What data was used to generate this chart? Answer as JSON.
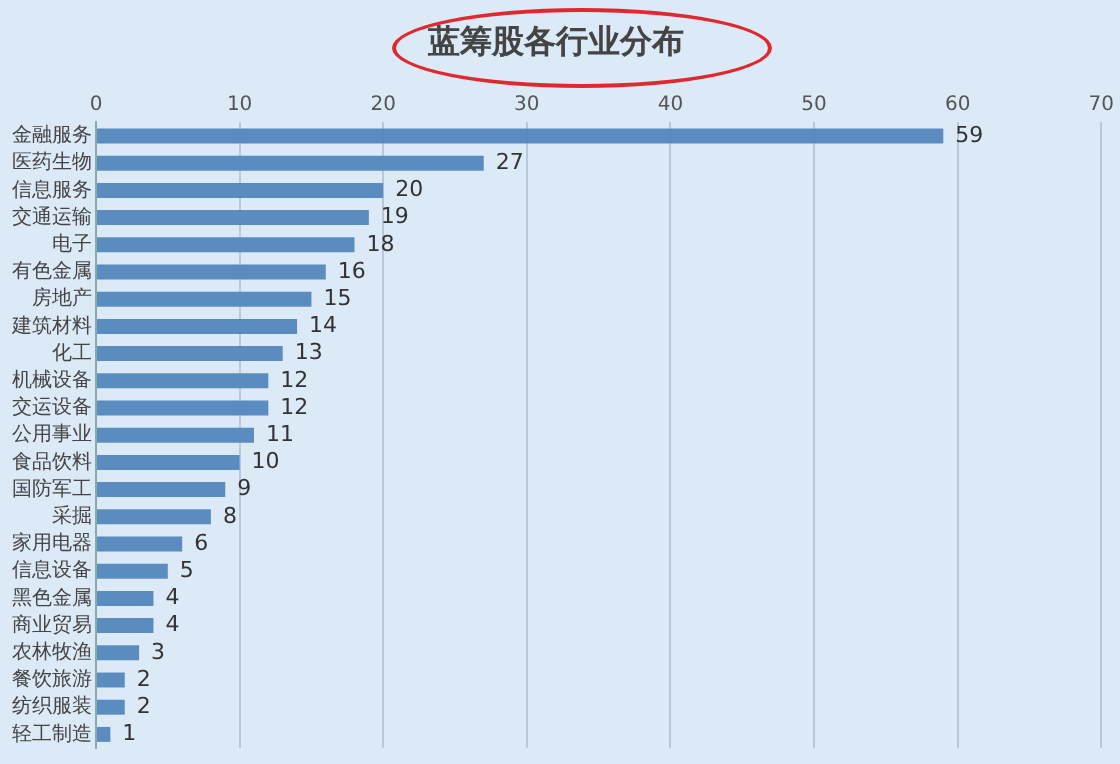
{
  "chart_data": {
    "type": "bar",
    "orientation": "horizontal",
    "title": "蓝筹股各行业分布",
    "categories": [
      "金融服务",
      "医药生物",
      "信息服务",
      "交通运输",
      "电子",
      "有色金属",
      "房地产",
      "建筑材料",
      "化工",
      "机械设备",
      "交运设备",
      "公用事业",
      "食品饮料",
      "国防军工",
      "采掘",
      "家用电器",
      "信息设备",
      "黑色金属",
      "商业贸易",
      "农林牧渔",
      "餐饮旅游",
      "纺织服装",
      "轻工制造"
    ],
    "values": [
      59,
      27,
      20,
      19,
      18,
      16,
      15,
      14,
      13,
      12,
      12,
      11,
      10,
      9,
      8,
      6,
      5,
      4,
      4,
      3,
      2,
      2,
      1
    ],
    "color": "#5b8cc0",
    "xlim": [
      0,
      70
    ],
    "xticks": [
      0,
      10,
      20,
      30,
      40,
      50,
      60,
      70
    ],
    "grid": "x",
    "data_labels": true,
    "legend": false
  }
}
